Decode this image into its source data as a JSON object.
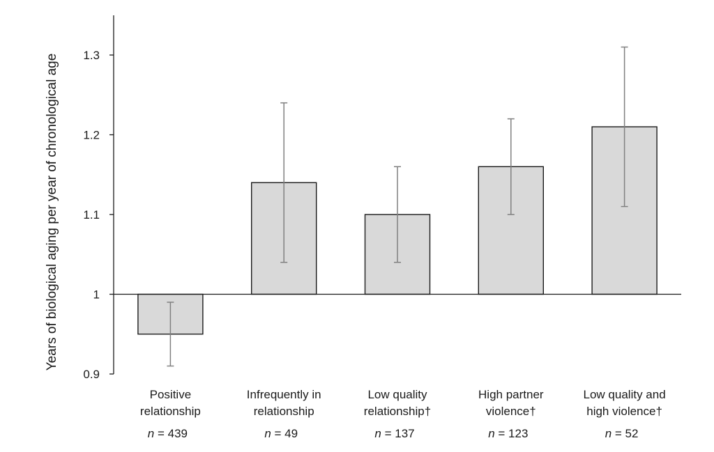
{
  "chart_data": {
    "type": "bar",
    "title": "",
    "xlabel": "",
    "ylabel": "Years of biological aging per year of chronological age",
    "ylim": [
      0.9,
      1.35
    ],
    "baseline": 1,
    "yticks": [
      0.9,
      1,
      1.1,
      1.2,
      1.3
    ],
    "ytick_labels": [
      "0.9",
      "1",
      "1.1",
      "1.2",
      "1.3"
    ],
    "grid": false,
    "categories": [
      {
        "lines": [
          "Positive",
          "relationship"
        ],
        "n_prefix": "n",
        "n_suffix": " = 439",
        "value": 0.95,
        "err_low": 0.91,
        "err_high": 0.99
      },
      {
        "lines": [
          "Infrequently in",
          "relationship"
        ],
        "n_prefix": "n",
        "n_suffix": " = 49",
        "value": 1.14,
        "err_low": 1.04,
        "err_high": 1.24
      },
      {
        "lines": [
          "Low quality",
          "relationship†"
        ],
        "n_prefix": "n",
        "n_suffix": " = 137",
        "value": 1.1,
        "err_low": 1.04,
        "err_high": 1.16
      },
      {
        "lines": [
          "High partner",
          "violence†"
        ],
        "n_prefix": "n",
        "n_suffix": " = 123",
        "value": 1.16,
        "err_low": 1.1,
        "err_high": 1.22
      },
      {
        "lines": [
          "Low quality and",
          "high violence†"
        ],
        "n_prefix": "n",
        "n_suffix": " = 52",
        "value": 1.21,
        "err_low": 1.11,
        "err_high": 1.31
      }
    ],
    "colors": {
      "bar_fill": "#d9d9d9",
      "bar_stroke": "#1a1a1a",
      "error_bar": "#808080",
      "axis": "#1a1a1a"
    }
  }
}
